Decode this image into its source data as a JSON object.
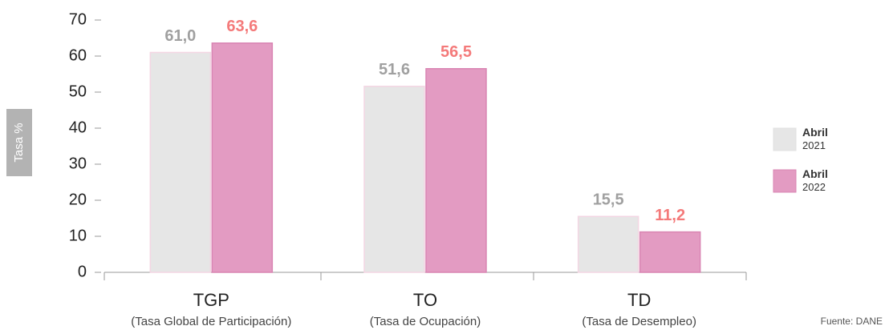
{
  "chart_data": {
    "type": "bar",
    "y_label": "Tasa %",
    "categories": [
      "TGP",
      "TO",
      "TD"
    ],
    "category_descriptions": [
      "(Tasa Global de Participación)",
      "(Tasa de Ocupación)",
      "(Tasa de Desempleo)"
    ],
    "series": [
      {
        "name": "Abril 2021",
        "color": "#e6e6e6",
        "label_color": "#a0a0a0",
        "values": [
          61.0,
          51.6,
          15.5
        ],
        "value_labels": [
          "61,0",
          "51,6",
          "15,5"
        ]
      },
      {
        "name": "Abril 2022",
        "color": "#e39bc2",
        "label_color": "#f47a7a",
        "values": [
          63.6,
          56.5,
          11.2
        ],
        "value_labels": [
          "63,6",
          "56,5",
          "11,2"
        ]
      }
    ],
    "ylim": [
      0,
      70
    ],
    "yticks": [
      0,
      10,
      20,
      30,
      40,
      50,
      60,
      70
    ],
    "source": "Fuente: DANE"
  }
}
